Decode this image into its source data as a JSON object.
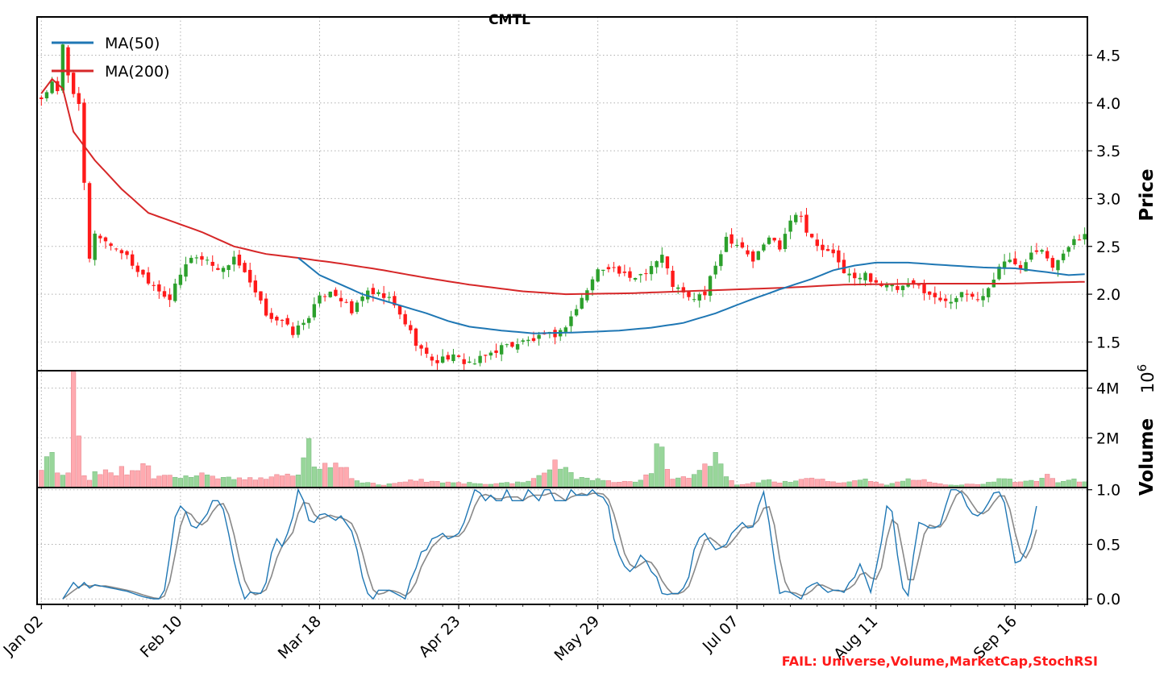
{
  "chart_data": {
    "type": "candlestick",
    "title": "CMTL",
    "price_axis_label": "Price",
    "volume_axis_label": "Volume",
    "volume_multiplier_label": "10",
    "volume_multiplier_exp": "6",
    "fail_note": "FAIL: Universe,Volume,MarketCap,StochRSI",
    "x_tick_labels": [
      "Jan 02",
      "Feb 10",
      "Mar 18",
      "Apr 23",
      "May 29",
      "Jul 07",
      "Aug 11",
      "Sep 16"
    ],
    "price_ticks": [
      "1.5",
      "2.0",
      "2.5",
      "3.0",
      "3.5",
      "4.0",
      "4.5"
    ],
    "volume_ticks": [
      "2M",
      "4M"
    ],
    "stoch_ticks": [
      "0.0",
      "0.5",
      "1.0"
    ],
    "price_ylim": [
      1.2,
      4.9
    ],
    "volume_ylim": [
      0,
      4700000
    ],
    "stoch_ylim": [
      -0.05,
      1.02
    ],
    "legend": [
      {
        "label": "MA(50)",
        "color": "#1f77b4"
      },
      {
        "label": "MA(200)",
        "color": "#d62728"
      }
    ],
    "colors": {
      "up": "#2ca02c",
      "down": "#ff1a1a",
      "ma50": "#1f77b4",
      "ma200": "#d62728",
      "stoch_k": "#1f77b4",
      "stoch_d": "#888888",
      "fail": "#ff1a1a"
    },
    "price_anchors": [
      [
        0,
        4.05
      ],
      [
        2,
        4.2
      ],
      [
        3,
        4.1
      ],
      [
        4,
        4.6
      ],
      [
        5,
        4.3
      ],
      [
        7,
        3.95
      ],
      [
        9,
        2.35
      ],
      [
        10,
        2.65
      ],
      [
        12,
        2.55
      ],
      [
        15,
        2.45
      ],
      [
        18,
        2.25
      ],
      [
        21,
        2.1
      ],
      [
        24,
        1.95
      ],
      [
        26,
        2.2
      ],
      [
        28,
        2.4
      ],
      [
        31,
        2.35
      ],
      [
        34,
        2.25
      ],
      [
        36,
        2.4
      ],
      [
        39,
        2.1
      ],
      [
        42,
        1.8
      ],
      [
        45,
        1.7
      ],
      [
        47,
        1.6
      ],
      [
        49,
        1.7
      ],
      [
        52,
        1.95
      ],
      [
        54,
        2.05
      ],
      [
        56,
        1.95
      ],
      [
        58,
        1.8
      ],
      [
        60,
        2.0
      ],
      [
        62,
        2.0
      ],
      [
        65,
        1.95
      ],
      [
        68,
        1.7
      ],
      [
        70,
        1.5
      ],
      [
        72,
        1.35
      ],
      [
        74,
        1.3
      ],
      [
        76,
        1.35
      ],
      [
        79,
        1.3
      ],
      [
        81,
        1.28
      ],
      [
        83,
        1.35
      ],
      [
        86,
        1.45
      ],
      [
        90,
        1.5
      ],
      [
        94,
        1.55
      ],
      [
        97,
        1.6
      ],
      [
        100,
        1.85
      ],
      [
        102,
        2.05
      ],
      [
        104,
        2.25
      ],
      [
        106,
        2.3
      ],
      [
        110,
        2.15
      ],
      [
        113,
        2.25
      ],
      [
        116,
        2.4
      ],
      [
        118,
        2.1
      ],
      [
        121,
        1.95
      ],
      [
        124,
        2.0
      ],
      [
        126,
        2.3
      ],
      [
        128,
        2.6
      ],
      [
        131,
        2.5
      ],
      [
        133,
        2.35
      ],
      [
        136,
        2.6
      ],
      [
        138,
        2.5
      ],
      [
        140,
        2.8
      ],
      [
        142,
        2.85
      ],
      [
        143,
        2.65
      ],
      [
        145,
        2.5
      ],
      [
        148,
        2.4
      ],
      [
        150,
        2.25
      ],
      [
        152,
        2.15
      ],
      [
        154,
        2.2
      ],
      [
        157,
        2.1
      ],
      [
        160,
        2.05
      ],
      [
        163,
        2.1
      ],
      [
        165,
        2.05
      ],
      [
        167,
        1.95
      ],
      [
        170,
        1.95
      ],
      [
        173,
        2.0
      ],
      [
        175,
        1.95
      ],
      [
        177,
        2.05
      ],
      [
        179,
        2.3
      ],
      [
        181,
        2.35
      ],
      [
        183,
        2.3
      ],
      [
        185,
        2.45
      ],
      [
        187,
        2.5
      ],
      [
        189,
        2.3
      ],
      [
        191,
        2.4
      ],
      [
        193,
        2.6
      ],
      [
        195,
        2.6
      ]
    ],
    "ma200_anchors": [
      [
        0,
        4.1
      ],
      [
        2,
        4.25
      ],
      [
        4,
        4.15
      ],
      [
        6,
        3.7
      ],
      [
        10,
        3.4
      ],
      [
        15,
        3.1
      ],
      [
        20,
        2.85
      ],
      [
        25,
        2.75
      ],
      [
        30,
        2.65
      ],
      [
        36,
        2.5
      ],
      [
        42,
        2.42
      ],
      [
        48,
        2.38
      ],
      [
        56,
        2.32
      ],
      [
        64,
        2.25
      ],
      [
        72,
        2.17
      ],
      [
        80,
        2.1
      ],
      [
        90,
        2.03
      ],
      [
        98,
        2.0
      ],
      [
        110,
        2.01
      ],
      [
        120,
        2.03
      ],
      [
        130,
        2.05
      ],
      [
        140,
        2.07
      ],
      [
        150,
        2.1
      ],
      [
        165,
        2.11
      ],
      [
        180,
        2.11
      ],
      [
        195,
        2.13
      ]
    ],
    "ma50_anchors": [
      [
        48,
        2.38
      ],
      [
        52,
        2.2
      ],
      [
        56,
        2.1
      ],
      [
        60,
        2.0
      ],
      [
        66,
        1.9
      ],
      [
        72,
        1.8
      ],
      [
        76,
        1.72
      ],
      [
        80,
        1.66
      ],
      [
        86,
        1.62
      ],
      [
        92,
        1.59
      ],
      [
        100,
        1.6
      ],
      [
        108,
        1.62
      ],
      [
        114,
        1.65
      ],
      [
        120,
        1.7
      ],
      [
        126,
        1.8
      ],
      [
        132,
        1.93
      ],
      [
        138,
        2.05
      ],
      [
        144,
        2.16
      ],
      [
        148,
        2.25
      ],
      [
        152,
        2.3
      ],
      [
        156,
        2.33
      ],
      [
        162,
        2.33
      ],
      [
        170,
        2.3
      ],
      [
        176,
        2.28
      ],
      [
        182,
        2.27
      ],
      [
        188,
        2.23
      ],
      [
        192,
        2.2
      ],
      [
        195,
        2.21
      ]
    ],
    "volume_anchors": [
      [
        0,
        0.6
      ],
      [
        1,
        1.1
      ],
      [
        2,
        1.5
      ],
      [
        3,
        0.55
      ],
      [
        4,
        0.55
      ],
      [
        5,
        0.5
      ],
      [
        6,
        4.3
      ],
      [
        7,
        1.8
      ],
      [
        8,
        0.4
      ],
      [
        9,
        0.3
      ],
      [
        10,
        0.55
      ],
      [
        12,
        0.7
      ],
      [
        14,
        0.45
      ],
      [
        15,
        0.8
      ],
      [
        16,
        0.45
      ],
      [
        20,
        0.95
      ],
      [
        21,
        0.35
      ],
      [
        25,
        0.5
      ],
      [
        28,
        0.35
      ],
      [
        30,
        0.55
      ],
      [
        34,
        0.4
      ],
      [
        38,
        0.35
      ],
      [
        42,
        0.4
      ],
      [
        48,
        0.55
      ],
      [
        50,
        2.05
      ],
      [
        51,
        0.8
      ],
      [
        54,
        0.95
      ],
      [
        56,
        1.0
      ],
      [
        58,
        0.4
      ],
      [
        60,
        0.2
      ],
      [
        64,
        0.1
      ],
      [
        70,
        0.3
      ],
      [
        76,
        0.2
      ],
      [
        84,
        0.15
      ],
      [
        90,
        0.2
      ],
      [
        94,
        0.5
      ],
      [
        96,
        1.1
      ],
      [
        98,
        0.7
      ],
      [
        100,
        0.4
      ],
      [
        104,
        0.3
      ],
      [
        108,
        0.2
      ],
      [
        112,
        0.3
      ],
      [
        114,
        0.6
      ],
      [
        115,
        1.9
      ],
      [
        116,
        1.4
      ],
      [
        118,
        0.4
      ],
      [
        121,
        0.35
      ],
      [
        124,
        0.9
      ],
      [
        126,
        1.2
      ],
      [
        128,
        0.45
      ],
      [
        130,
        0.1
      ],
      [
        136,
        0.3
      ],
      [
        138,
        0.2
      ],
      [
        140,
        0.25
      ],
      [
        145,
        0.35
      ],
      [
        150,
        0.2
      ],
      [
        154,
        0.3
      ],
      [
        158,
        0.1
      ],
      [
        163,
        0.35
      ],
      [
        170,
        0.1
      ],
      [
        176,
        0.15
      ],
      [
        180,
        0.4
      ],
      [
        182,
        0.2
      ],
      [
        186,
        0.3
      ],
      [
        188,
        0.5
      ],
      [
        190,
        0.2
      ],
      [
        193,
        0.3
      ],
      [
        195,
        0.2
      ]
    ],
    "stoch_k_anchors": [
      [
        4,
        0.0
      ],
      [
        6,
        0.15
      ],
      [
        7,
        0.1
      ],
      [
        8,
        0.15
      ],
      [
        9,
        0.1
      ],
      [
        10,
        0.13
      ],
      [
        13,
        0.1
      ],
      [
        16,
        0.07
      ],
      [
        19,
        0.02
      ],
      [
        21,
        0.0
      ],
      [
        22,
        0.0
      ],
      [
        23,
        0.08
      ],
      [
        24,
        0.4
      ],
      [
        25,
        0.75
      ],
      [
        26,
        0.85
      ],
      [
        27,
        0.8
      ],
      [
        28,
        0.67
      ],
      [
        29,
        0.65
      ],
      [
        31,
        0.78
      ],
      [
        32,
        0.9
      ],
      [
        33,
        0.9
      ],
      [
        34,
        0.82
      ],
      [
        35,
        0.6
      ],
      [
        36,
        0.35
      ],
      [
        37,
        0.15
      ],
      [
        38,
        0.0
      ],
      [
        39,
        0.06
      ],
      [
        41,
        0.05
      ],
      [
        42,
        0.15
      ],
      [
        43,
        0.42
      ],
      [
        44,
        0.55
      ],
      [
        45,
        0.48
      ],
      [
        46,
        0.6
      ],
      [
        47,
        0.75
      ],
      [
        48,
        1.0
      ],
      [
        49,
        0.9
      ],
      [
        50,
        0.72
      ],
      [
        51,
        0.7
      ],
      [
        52,
        0.77
      ],
      [
        53,
        0.78
      ],
      [
        55,
        0.72
      ],
      [
        56,
        0.76
      ],
      [
        58,
        0.62
      ],
      [
        59,
        0.45
      ],
      [
        60,
        0.2
      ],
      [
        61,
        0.05
      ],
      [
        62,
        0.0
      ],
      [
        63,
        0.08
      ],
      [
        65,
        0.08
      ],
      [
        67,
        0.03
      ],
      [
        68,
        0.0
      ],
      [
        69,
        0.17
      ],
      [
        70,
        0.28
      ],
      [
        71,
        0.43
      ],
      [
        72,
        0.45
      ],
      [
        73,
        0.55
      ],
      [
        74,
        0.57
      ],
      [
        75,
        0.6
      ],
      [
        76,
        0.55
      ],
      [
        77,
        0.57
      ],
      [
        78,
        0.6
      ],
      [
        79,
        0.7
      ],
      [
        80,
        0.85
      ],
      [
        81,
        1.0
      ],
      [
        82,
        0.97
      ],
      [
        83,
        0.9
      ],
      [
        84,
        0.95
      ],
      [
        85,
        0.9
      ],
      [
        86,
        0.9
      ],
      [
        87,
        1.0
      ],
      [
        88,
        0.9
      ],
      [
        89,
        0.9
      ],
      [
        90,
        0.9
      ],
      [
        91,
        1.0
      ],
      [
        92,
        0.95
      ],
      [
        93,
        0.9
      ],
      [
        94,
        1.0
      ],
      [
        95,
        1.0
      ],
      [
        96,
        0.9
      ],
      [
        97,
        0.9
      ],
      [
        98,
        0.9
      ],
      [
        99,
        1.0
      ],
      [
        100,
        0.95
      ],
      [
        101,
        0.95
      ],
      [
        102,
        0.95
      ],
      [
        103,
        1.0
      ],
      [
        104,
        0.95
      ],
      [
        105,
        0.93
      ],
      [
        106,
        0.85
      ],
      [
        107,
        0.55
      ],
      [
        108,
        0.4
      ],
      [
        109,
        0.3
      ],
      [
        110,
        0.25
      ],
      [
        111,
        0.3
      ],
      [
        112,
        0.4
      ],
      [
        113,
        0.35
      ],
      [
        114,
        0.25
      ],
      [
        115,
        0.2
      ],
      [
        116,
        0.05
      ],
      [
        117,
        0.04
      ],
      [
        118,
        0.05
      ],
      [
        119,
        0.05
      ],
      [
        120,
        0.1
      ],
      [
        121,
        0.2
      ],
      [
        122,
        0.45
      ],
      [
        123,
        0.56
      ],
      [
        124,
        0.6
      ],
      [
        125,
        0.52
      ],
      [
        126,
        0.45
      ],
      [
        127,
        0.47
      ],
      [
        128,
        0.5
      ],
      [
        129,
        0.6
      ],
      [
        130,
        0.65
      ],
      [
        131,
        0.7
      ],
      [
        132,
        0.65
      ],
      [
        133,
        0.66
      ],
      [
        134,
        0.85
      ],
      [
        135,
        0.98
      ],
      [
        136,
        0.7
      ],
      [
        137,
        0.35
      ],
      [
        138,
        0.05
      ],
      [
        139,
        0.07
      ],
      [
        140,
        0.06
      ],
      [
        141,
        0.03
      ],
      [
        142,
        0.0
      ],
      [
        143,
        0.1
      ],
      [
        144,
        0.13
      ],
      [
        145,
        0.15
      ],
      [
        146,
        0.1
      ],
      [
        147,
        0.06
      ],
      [
        148,
        0.08
      ],
      [
        149,
        0.08
      ],
      [
        150,
        0.06
      ],
      [
        151,
        0.15
      ],
      [
        152,
        0.2
      ],
      [
        153,
        0.32
      ],
      [
        154,
        0.2
      ],
      [
        155,
        0.06
      ],
      [
        156,
        0.28
      ],
      [
        157,
        0.52
      ],
      [
        158,
        0.85
      ],
      [
        159,
        0.8
      ],
      [
        160,
        0.4
      ],
      [
        161,
        0.1
      ],
      [
        162,
        0.03
      ],
      [
        163,
        0.4
      ],
      [
        164,
        0.7
      ],
      [
        165,
        0.68
      ],
      [
        166,
        0.65
      ],
      [
        167,
        0.65
      ],
      [
        168,
        0.68
      ],
      [
        169,
        0.85
      ],
      [
        170,
        1.0
      ],
      [
        171,
        1.0
      ],
      [
        172,
        0.97
      ],
      [
        173,
        0.85
      ],
      [
        174,
        0.78
      ],
      [
        175,
        0.76
      ],
      [
        176,
        0.8
      ],
      [
        177,
        0.88
      ],
      [
        178,
        0.97
      ],
      [
        179,
        0.98
      ],
      [
        180,
        0.88
      ],
      [
        181,
        0.6
      ],
      [
        182,
        0.33
      ],
      [
        183,
        0.35
      ],
      [
        184,
        0.45
      ],
      [
        185,
        0.6
      ],
      [
        186,
        0.85
      ]
    ]
  }
}
